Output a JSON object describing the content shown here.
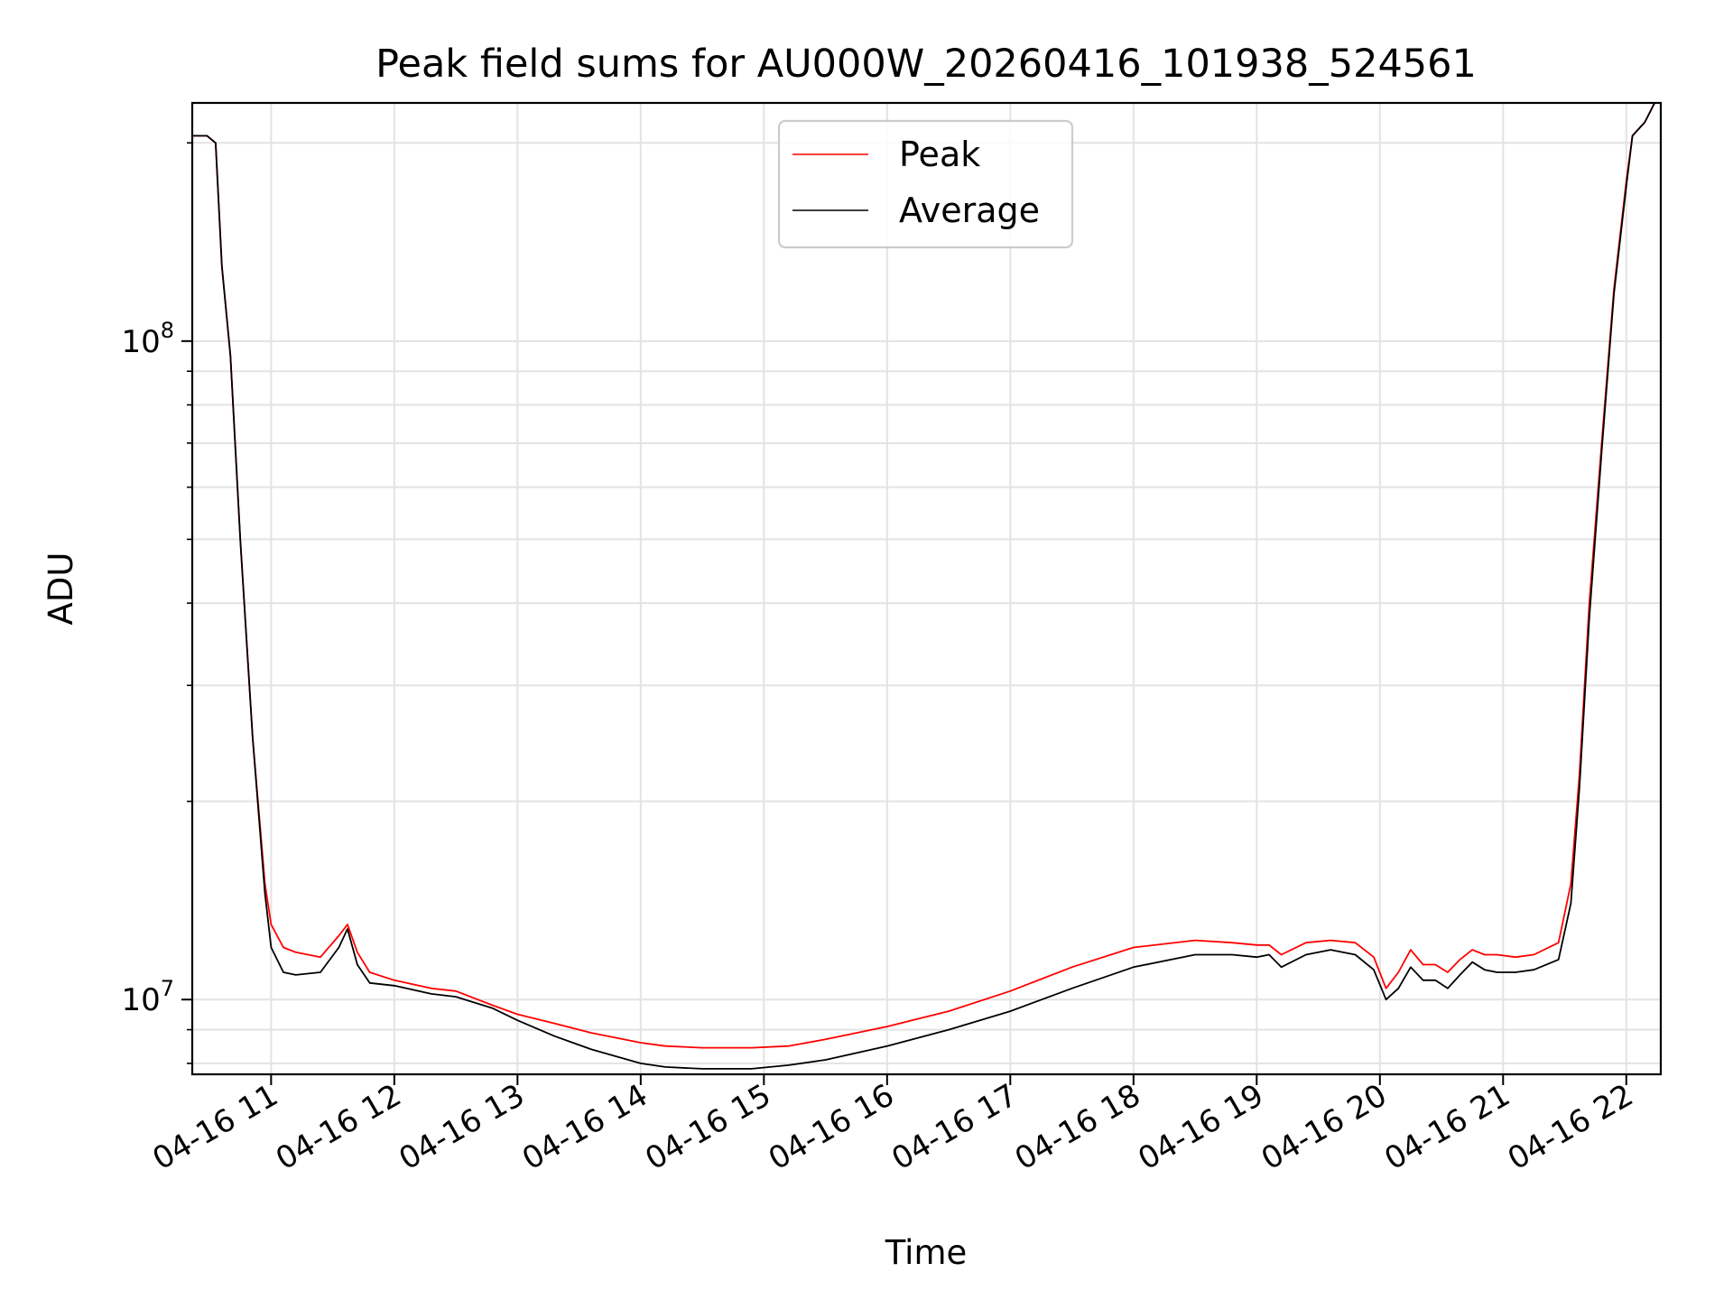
{
  "chart_data": {
    "type": "line",
    "title": "Peak field sums for AU000W_20260416_101938_524561",
    "xlabel": "Time",
    "ylabel": "ADU",
    "yscale": "log",
    "grid": true,
    "legend_position": "upper center",
    "xlim": [
      10.36,
      22.28
    ],
    "ylim": [
      7700000,
      230000000
    ],
    "x_tick_values": [
      11,
      12,
      13,
      14,
      15,
      16,
      17,
      18,
      19,
      20,
      21,
      22
    ],
    "x_tick_labels": [
      "04-16 11",
      "04-16 12",
      "04-16 13",
      "04-16 14",
      "04-16 15",
      "04-16 16",
      "04-16 17",
      "04-16 18",
      "04-16 19",
      "04-16 20",
      "04-16 21",
      "04-16 22"
    ],
    "y_major_ticks": [
      {
        "value": 10000000,
        "base": "10",
        "exp": "7"
      },
      {
        "value": 100000000,
        "base": "10",
        "exp": "8"
      }
    ],
    "y_minor_ticks": [
      8000000,
      9000000,
      20000000,
      30000000,
      40000000,
      50000000,
      60000000,
      70000000,
      80000000,
      90000000,
      200000000
    ],
    "series": [
      {
        "name": "Peak",
        "color": "#ff0000",
        "x": [
          10.36,
          10.48,
          10.55,
          10.6,
          10.67,
          10.75,
          10.85,
          10.95,
          11.0,
          11.1,
          11.2,
          11.4,
          11.55,
          11.62,
          11.7,
          11.8,
          12.0,
          12.3,
          12.5,
          12.8,
          13.0,
          13.3,
          13.6,
          14.0,
          14.2,
          14.5,
          14.9,
          15.2,
          15.5,
          16.0,
          16.5,
          17.0,
          17.5,
          18.0,
          18.5,
          18.8,
          19.0,
          19.1,
          19.2,
          19.4,
          19.6,
          19.8,
          19.95,
          20.05,
          20.15,
          20.25,
          20.35,
          20.45,
          20.55,
          20.65,
          20.75,
          20.85,
          20.95,
          21.1,
          21.25,
          21.45,
          21.55,
          21.62,
          21.7,
          21.8,
          21.9,
          22.0,
          22.05,
          22.15,
          22.28
        ],
        "y": [
          205000000,
          205000000,
          200000000,
          130000000,
          95000000,
          50000000,
          25000000,
          15000000,
          13000000,
          12000000,
          11800000,
          11600000,
          12500000,
          13000000,
          11800000,
          11000000,
          10700000,
          10400000,
          10300000,
          9800000,
          9500000,
          9200000,
          8900000,
          8600000,
          8500000,
          8450000,
          8450000,
          8500000,
          8700000,
          9100000,
          9600000,
          10300000,
          11200000,
          12000000,
          12300000,
          12200000,
          12100000,
          12100000,
          11700000,
          12200000,
          12300000,
          12200000,
          11600000,
          10400000,
          11000000,
          11900000,
          11300000,
          11300000,
          11000000,
          11500000,
          11900000,
          11700000,
          11700000,
          11600000,
          11700000,
          12200000,
          15000000,
          22000000,
          40000000,
          70000000,
          120000000,
          175000000,
          205000000,
          215000000,
          240000000
        ]
      },
      {
        "name": "Average",
        "color": "#000000",
        "x": [
          10.36,
          10.48,
          10.55,
          10.6,
          10.67,
          10.75,
          10.85,
          10.95,
          11.0,
          11.1,
          11.2,
          11.4,
          11.55,
          11.62,
          11.7,
          11.8,
          12.0,
          12.3,
          12.5,
          12.8,
          13.0,
          13.3,
          13.6,
          14.0,
          14.2,
          14.5,
          14.9,
          15.2,
          15.5,
          16.0,
          16.5,
          17.0,
          17.5,
          18.0,
          18.5,
          18.8,
          19.0,
          19.1,
          19.2,
          19.4,
          19.6,
          19.8,
          19.95,
          20.05,
          20.15,
          20.25,
          20.35,
          20.45,
          20.55,
          20.65,
          20.75,
          20.85,
          20.95,
          21.1,
          21.25,
          21.45,
          21.55,
          21.62,
          21.7,
          21.8,
          21.9,
          22.0,
          22.05,
          22.15,
          22.28
        ],
        "y": [
          205000000,
          205000000,
          200000000,
          130000000,
          95000000,
          50000000,
          25000000,
          14500000,
          12000000,
          11000000,
          10900000,
          11000000,
          12000000,
          12800000,
          11300000,
          10600000,
          10500000,
          10200000,
          10100000,
          9700000,
          9300000,
          8800000,
          8400000,
          8000000,
          7900000,
          7850000,
          7850000,
          7950000,
          8100000,
          8500000,
          9000000,
          9600000,
          10400000,
          11200000,
          11700000,
          11700000,
          11600000,
          11700000,
          11200000,
          11700000,
          11900000,
          11700000,
          11100000,
          10000000,
          10400000,
          11200000,
          10700000,
          10700000,
          10400000,
          10900000,
          11400000,
          11100000,
          11000000,
          11000000,
          11100000,
          11500000,
          14000000,
          21000000,
          38000000,
          68000000,
          118000000,
          172000000,
          205000000,
          215000000,
          240000000
        ]
      }
    ]
  }
}
